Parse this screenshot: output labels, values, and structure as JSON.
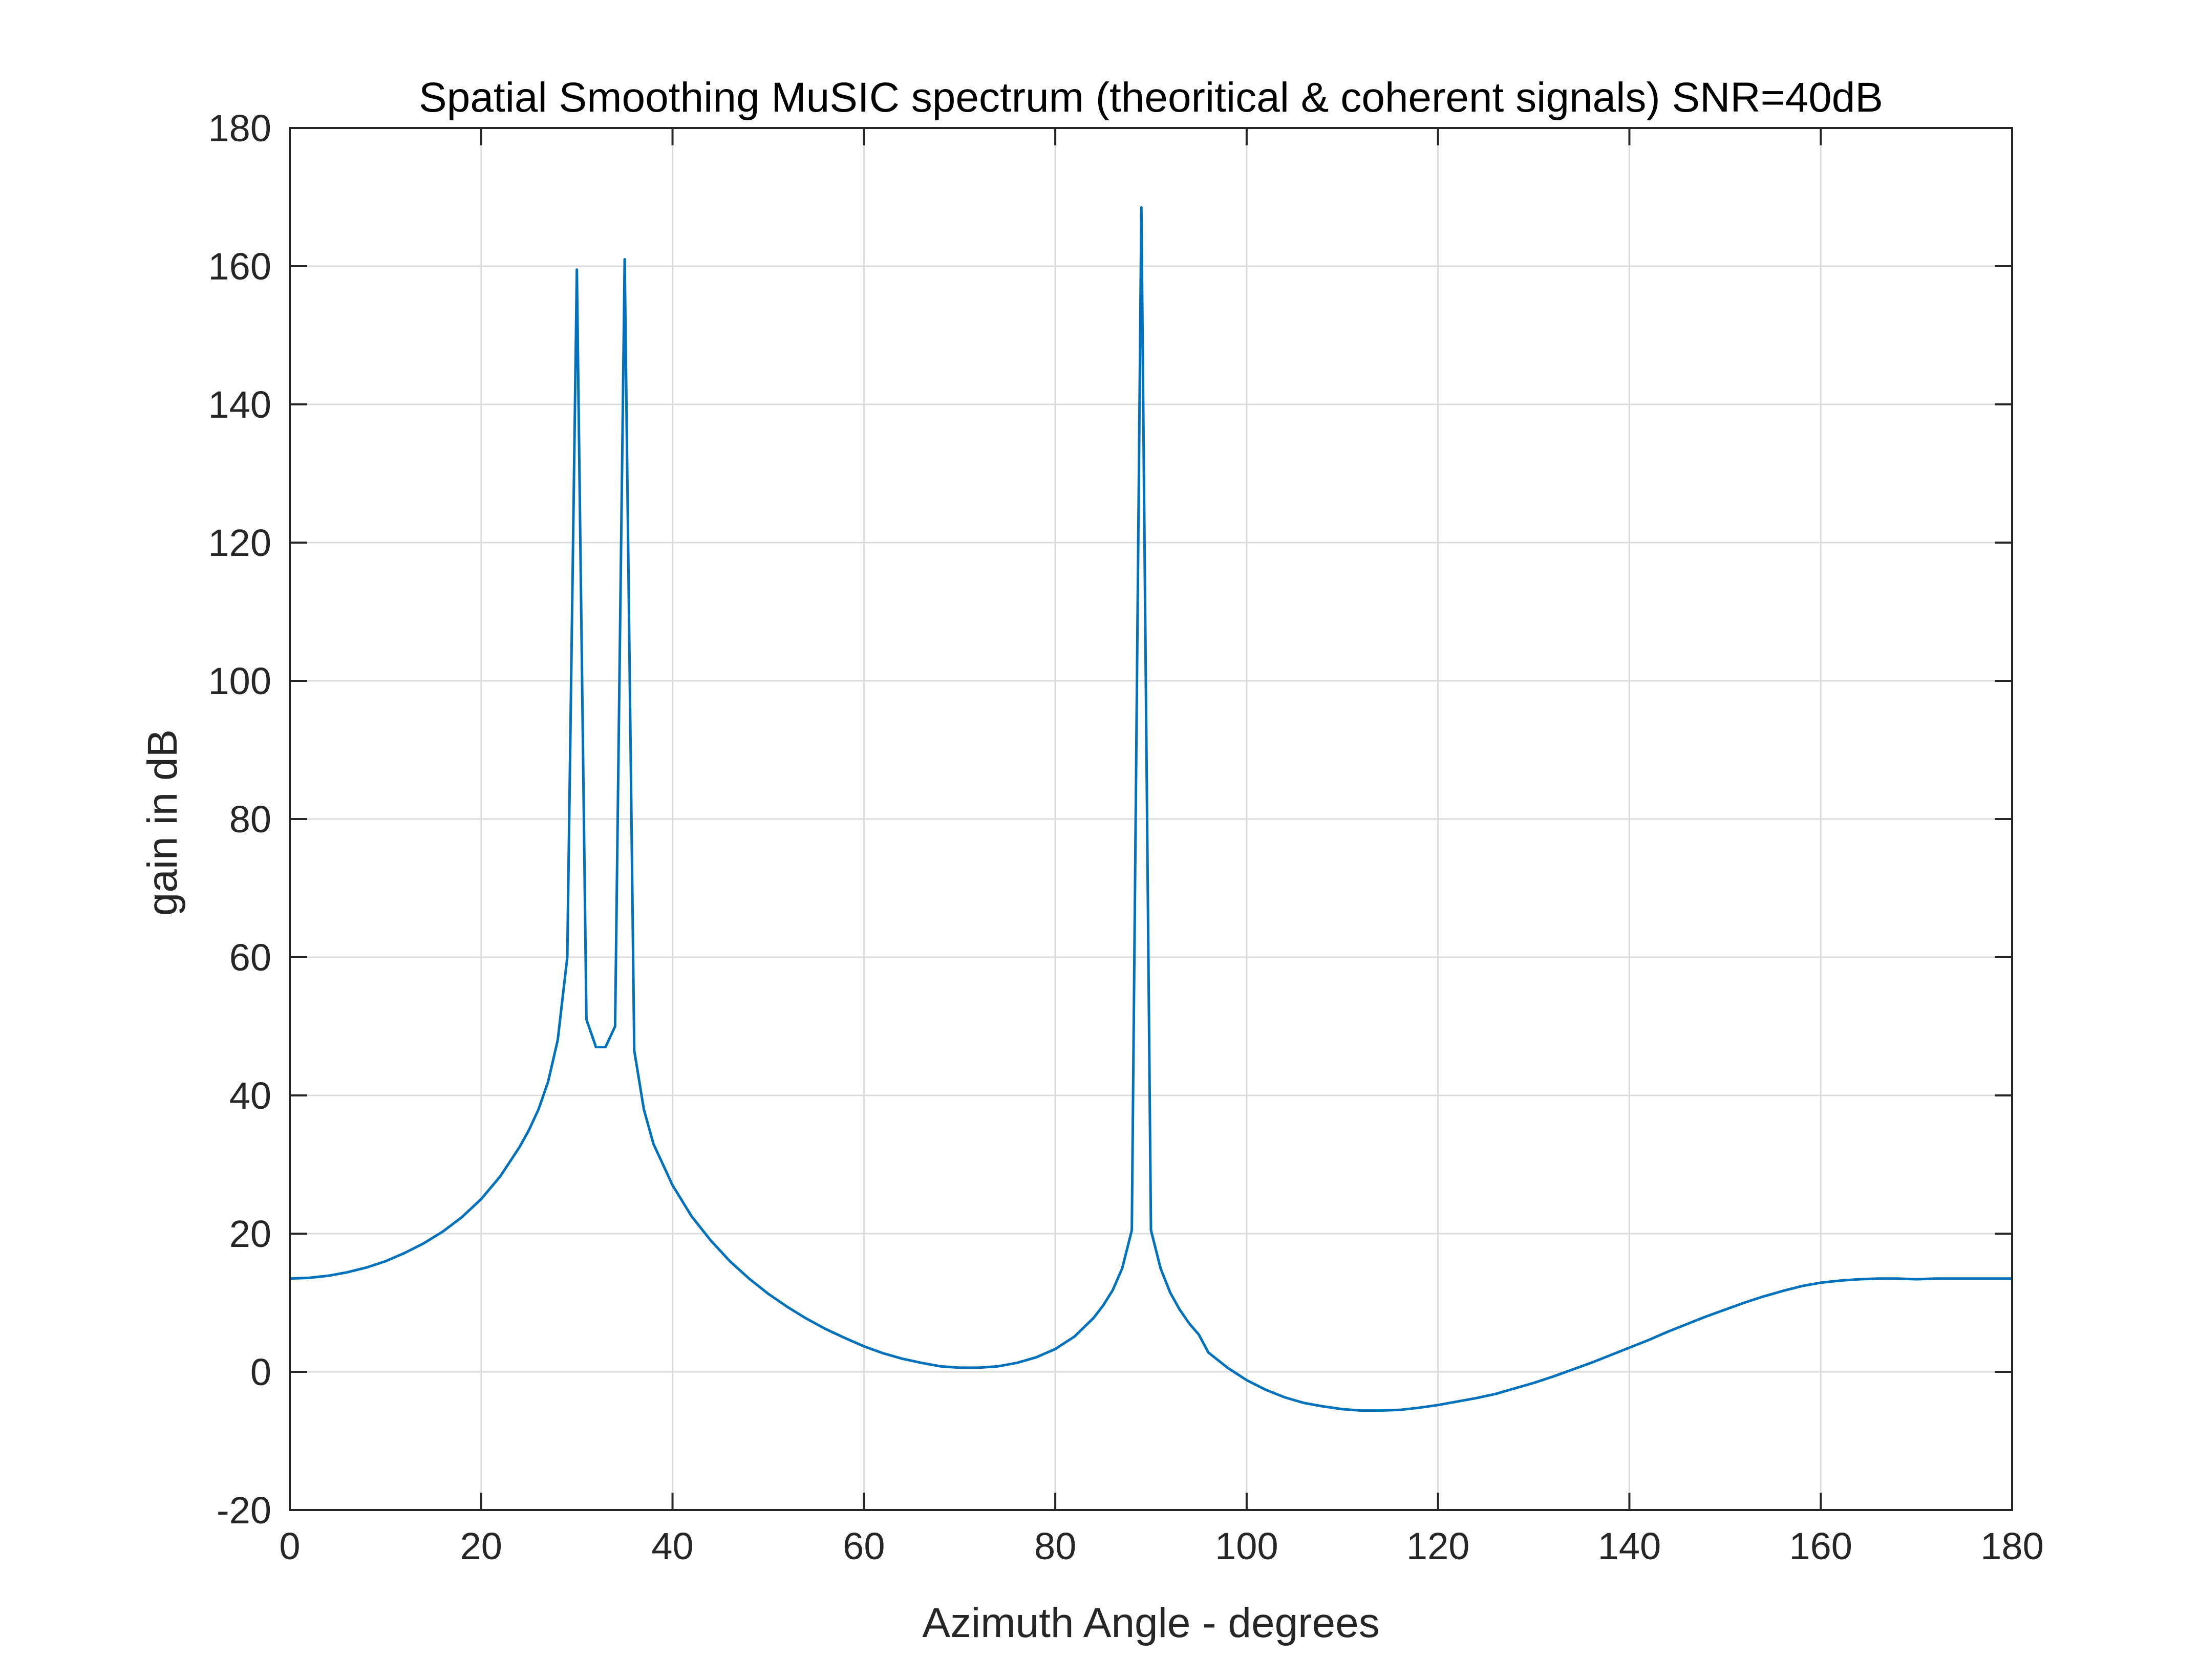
{
  "colors": {
    "background": "#ffffff",
    "axes": "#262626",
    "grid": "#dbdbdb",
    "series": "#0072bd"
  },
  "chart_data": {
    "type": "line",
    "title": "Spatial Smoothing MuSIC spectrum (theoritical & coherent signals) SNR=40dB",
    "xlabel": "Azimuth Angle - degrees",
    "ylabel": "gain in dB",
    "xlim": [
      0,
      180
    ],
    "ylim": [
      -20,
      180
    ],
    "x_ticks": [
      0,
      20,
      40,
      60,
      80,
      100,
      120,
      140,
      160,
      180
    ],
    "y_ticks": [
      -20,
      0,
      20,
      40,
      60,
      80,
      100,
      120,
      140,
      160,
      180
    ],
    "x_tick_labels": [
      "0",
      "20",
      "40",
      "60",
      "80",
      "100",
      "120",
      "140",
      "160",
      "180"
    ],
    "y_tick_labels": [
      "-20",
      "0",
      "20",
      "40",
      "60",
      "80",
      "100",
      "120",
      "140",
      "160",
      "180"
    ],
    "grid": true,
    "box": true,
    "series": [
      {
        "x": [
          0,
          2,
          4,
          6,
          8,
          10,
          12,
          14,
          16,
          18,
          20,
          22,
          24,
          25,
          26,
          27,
          28,
          29,
          30,
          31,
          32,
          33,
          34,
          35,
          36,
          37,
          38,
          40,
          42,
          44,
          46,
          48,
          50,
          52,
          54,
          56,
          58,
          60,
          62,
          64,
          66,
          68,
          70,
          72,
          74,
          76,
          78,
          80,
          82,
          84,
          85,
          86,
          87,
          88,
          89,
          90,
          91,
          92,
          93,
          94,
          95,
          96,
          98,
          100,
          102,
          104,
          106,
          108,
          110,
          112,
          114,
          116,
          118,
          120,
          122,
          124,
          126,
          128,
          130,
          132,
          134,
          136,
          138,
          140,
          142,
          144,
          146,
          148,
          150,
          152,
          154,
          156,
          158,
          160,
          162,
          164,
          166,
          168,
          170,
          172,
          174,
          176,
          178,
          180
        ],
        "y": [
          13.5,
          13.6,
          13.9,
          14.4,
          15.1,
          16.0,
          17.2,
          18.6,
          20.3,
          22.4,
          25.0,
          28.3,
          32.5,
          35.0,
          38.0,
          42.0,
          48.0,
          60.0,
          159.5,
          51.0,
          47.0,
          47.0,
          50.0,
          161.0,
          46.5,
          38.0,
          33.0,
          27.0,
          22.5,
          19.0,
          16.0,
          13.5,
          11.3,
          9.4,
          7.7,
          6.2,
          4.9,
          3.7,
          2.7,
          1.9,
          1.3,
          0.8,
          0.6,
          0.6,
          0.8,
          1.3,
          2.1,
          3.3,
          5.1,
          7.8,
          9.6,
          11.8,
          15.0,
          20.5,
          168.5,
          20.5,
          15.0,
          11.5,
          9.0,
          7.0,
          5.4,
          2.8,
          0.6,
          -1.2,
          -2.6,
          -3.7,
          -4.5,
          -5.0,
          -5.4,
          -5.6,
          -5.6,
          -5.5,
          -5.2,
          -4.8,
          -4.3,
          -3.8,
          -3.2,
          -2.4,
          -1.6,
          -0.7,
          0.3,
          1.3,
          2.4,
          3.5,
          4.6,
          5.8,
          6.9,
          8.0,
          9.0,
          10.0,
          10.9,
          11.7,
          12.4,
          12.9,
          13.2,
          13.4,
          13.5,
          13.5,
          13.4,
          13.5,
          13.5,
          13.5,
          13.5,
          13.5
        ]
      }
    ]
  }
}
